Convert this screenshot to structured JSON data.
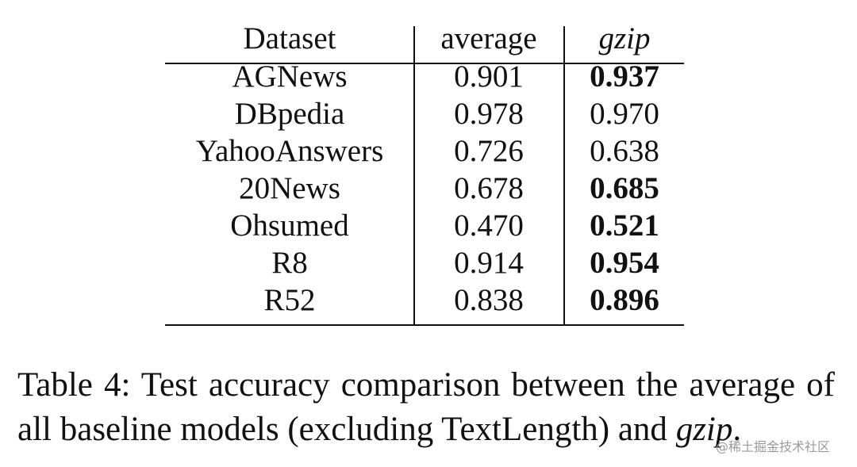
{
  "table": {
    "header": [
      "Dataset",
      "average",
      "gzip"
    ],
    "rows": [
      {
        "cells": [
          "AGNews",
          "0.901",
          "0.937"
        ],
        "gzip_bold": true
      },
      {
        "cells": [
          "DBpedia",
          "0.978",
          "0.970"
        ],
        "gzip_bold": false
      },
      {
        "cells": [
          "YahooAnswers",
          "0.726",
          "0.638"
        ],
        "gzip_bold": false
      },
      {
        "cells": [
          "20News",
          "0.678",
          "0.685"
        ],
        "gzip_bold": true
      },
      {
        "cells": [
          "Ohsumed",
          "0.470",
          "0.521"
        ],
        "gzip_bold": true
      },
      {
        "cells": [
          "R8",
          "0.914",
          "0.954"
        ],
        "gzip_bold": true
      },
      {
        "cells": [
          "R52",
          "0.838",
          "0.896"
        ],
        "gzip_bold": true
      }
    ]
  },
  "caption": {
    "text": "Table 4: Test accuracy comparison between the average of all baseline models (excluding TextLength) and ",
    "emphasis": "gzip",
    "end": "."
  },
  "watermark": "@稀土掘金技术社区"
}
